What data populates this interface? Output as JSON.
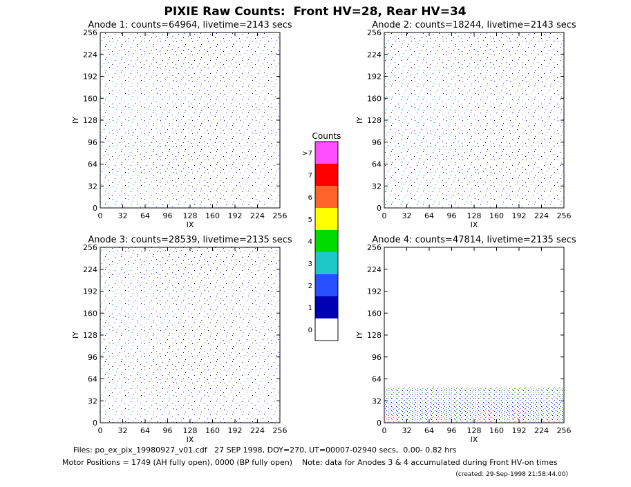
{
  "title": "PIXIE Raw Counts:  Front HV=28, Rear HV=34",
  "chart_data": [
    {
      "type": "heatmap",
      "title": "Anode 1: counts=64964, livetime=2143 secs",
      "x_label": "IX",
      "y_label": "IY",
      "xlim": [
        0,
        256
      ],
      "ylim": [
        0,
        256
      ],
      "xticks": [
        0,
        32,
        64,
        96,
        128,
        160,
        192,
        224,
        256
      ],
      "yticks": [
        0,
        32,
        64,
        96,
        128,
        160,
        192,
        224,
        256
      ]
    },
    {
      "type": "heatmap",
      "title": "Anode 2: counts=18244, livetime=2143 secs",
      "x_label": "IX",
      "y_label": "IY",
      "xlim": [
        0,
        256
      ],
      "ylim": [
        0,
        256
      ],
      "xticks": [
        0,
        32,
        64,
        96,
        128,
        160,
        192,
        224,
        256
      ],
      "yticks": [
        0,
        32,
        64,
        96,
        128,
        160,
        192,
        224,
        256
      ]
    },
    {
      "type": "heatmap",
      "title": "Anode 3: counts=28539, livetime=2135 secs",
      "x_label": "IX",
      "y_label": "IY",
      "xlim": [
        0,
        256
      ],
      "ylim": [
        0,
        256
      ],
      "xticks": [
        0,
        32,
        64,
        96,
        128,
        160,
        192,
        224,
        256
      ],
      "yticks": [
        0,
        32,
        64,
        96,
        128,
        160,
        192,
        224,
        256
      ]
    },
    {
      "type": "heatmap",
      "title": "Anode 4: counts=47814, livetime=2135 secs",
      "x_label": "IX",
      "y_label": "IY",
      "xlim": [
        0,
        256
      ],
      "ylim": [
        0,
        256
      ],
      "xticks": [
        0,
        32,
        64,
        96,
        128,
        160,
        192,
        224,
        256
      ],
      "yticks": [
        0,
        32,
        64,
        96,
        128,
        160,
        192,
        224,
        256
      ]
    }
  ],
  "colorbar": {
    "title": "Counts",
    "labels": [
      "0",
      "1",
      "2",
      "3",
      "4",
      "5",
      "6",
      "7",
      ">7"
    ],
    "colors": [
      "#ffffff",
      "#0000b4",
      "#2850ff",
      "#1ec8c8",
      "#00dc00",
      "#ffff00",
      "#ff6428",
      "#ff0000",
      "#ff50ff"
    ]
  },
  "footer": {
    "files": "Files: po_ex_pix_19980927_v01.cdf   27 SEP 1998, DOY=270, UT=00007-02940 secs,  0.00- 0.82 hrs",
    "motor": "Motor Positions = 1749 (AH fully open), 0000 (BP fully open)    Note: data for Anodes 3 & 4 accumulated during Front HV-on times",
    "created": "(created: 29-Sep-1998 21:58:44.00)"
  }
}
